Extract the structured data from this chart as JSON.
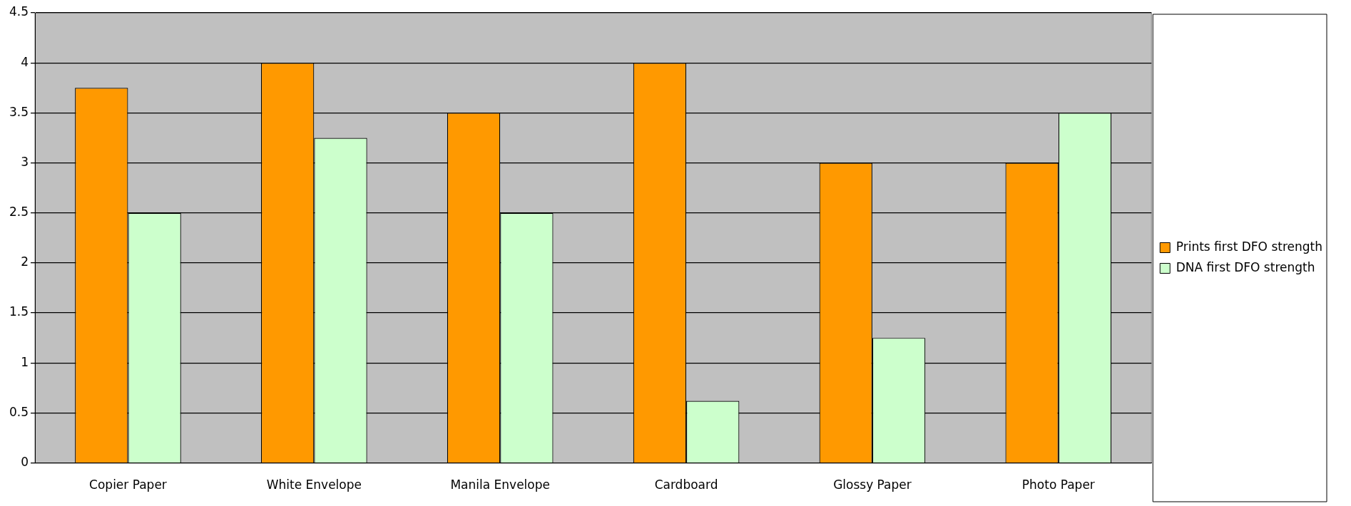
{
  "chart_data": {
    "type": "bar",
    "categories": [
      "Copier Paper",
      "White Envelope",
      "Manila Envelope",
      "Cardboard",
      "Glossy Paper",
      "Photo Paper"
    ],
    "series": [
      {
        "name": "Prints first DFO strength",
        "color": "#ff9900",
        "values": [
          3.75,
          4,
          3.5,
          4,
          3,
          3
        ]
      },
      {
        "name": "DNA first DFO strength",
        "color": "#ccffcc",
        "values": [
          2.5,
          3.25,
          2.5,
          0.62,
          1.25,
          3.5
        ]
      }
    ],
    "ylim": [
      0,
      4.5
    ],
    "yticks": [
      0,
      0.5,
      1,
      1.5,
      2,
      2.5,
      3,
      3.5,
      4,
      4.5
    ],
    "grid": "y",
    "legend": "right"
  }
}
